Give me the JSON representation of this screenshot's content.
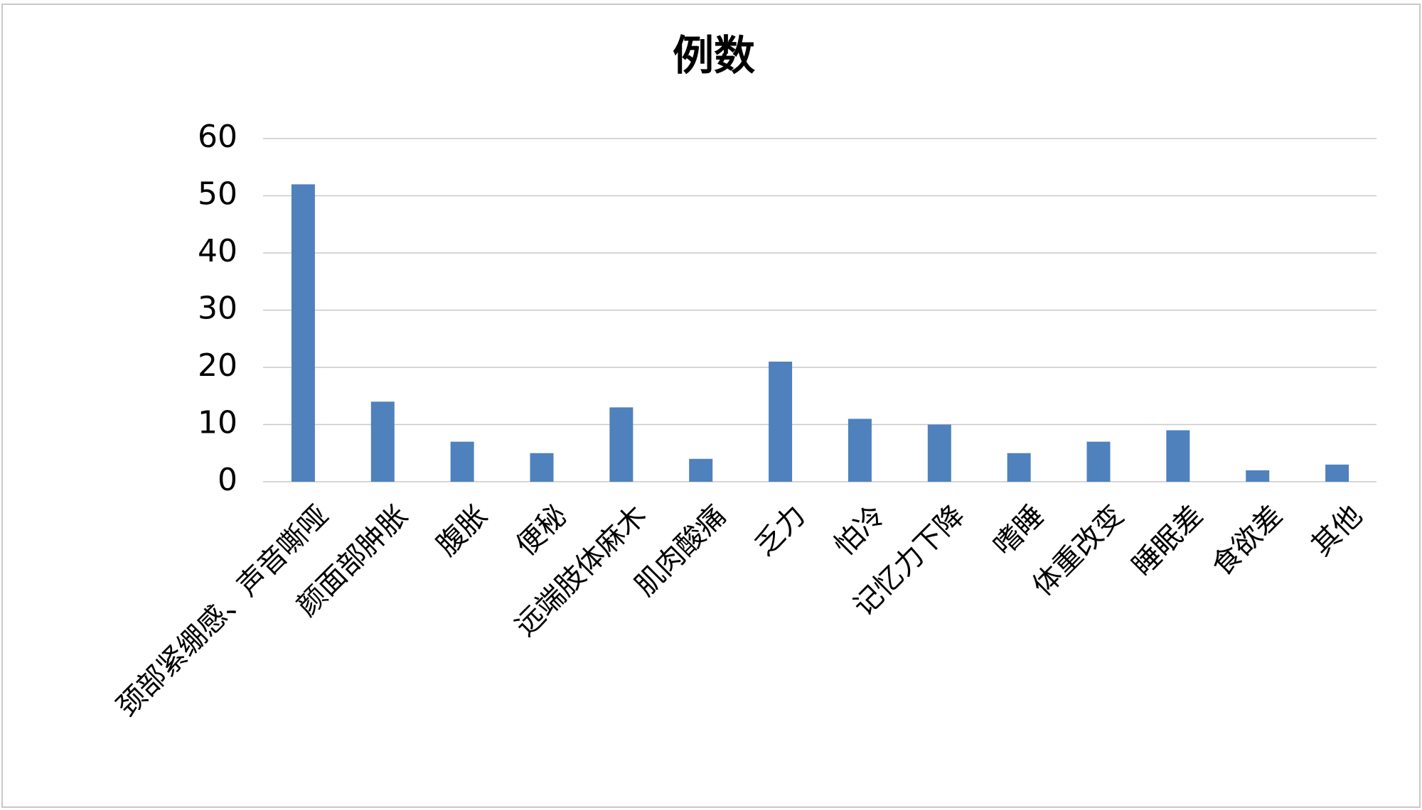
{
  "chart_data": {
    "type": "bar",
    "title": "例数",
    "categories": [
      "颈部紧绷感、声音嘶哑",
      "颜面部肿胀",
      "腹胀",
      "便秘",
      "远端肢体麻木",
      "肌肉酸痛",
      "乏力",
      "怕冷",
      "记忆力下降",
      "嗜睡",
      "体重改变",
      "睡眠差",
      "食欲差",
      "其他"
    ],
    "values": [
      52,
      14,
      7,
      5,
      13,
      4,
      21,
      11,
      10,
      5,
      7,
      9,
      2,
      3
    ],
    "color": "#4f81bd",
    "ylim": [
      0,
      60
    ],
    "yticks": [
      0,
      10,
      20,
      30,
      40,
      50,
      60
    ],
    "grid": true
  }
}
